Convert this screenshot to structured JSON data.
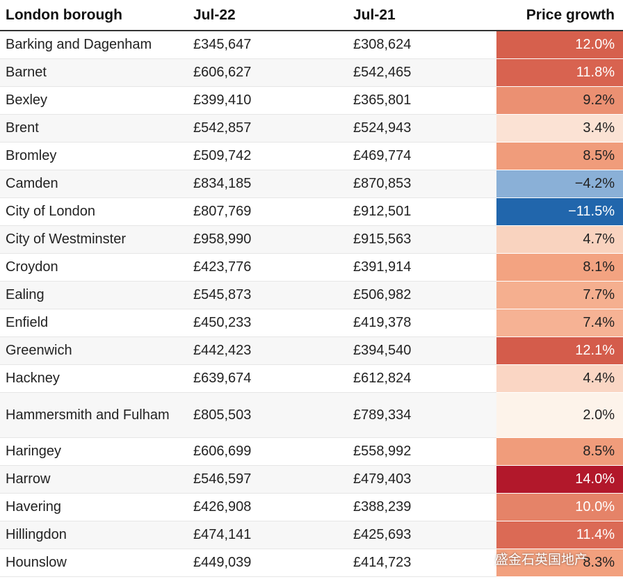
{
  "chart_data": {
    "type": "table",
    "columns": [
      "London borough",
      "Jul-22",
      "Jul-21",
      "Price growth"
    ],
    "rows": [
      {
        "borough": "Barking and Dagenham",
        "jul22": "£345,647",
        "jul21": "£308,624",
        "growth": "12.0%",
        "value": 12.0
      },
      {
        "borough": "Barnet",
        "jul22": "£606,627",
        "jul21": "£542,465",
        "growth": "11.8%",
        "value": 11.8
      },
      {
        "borough": "Bexley",
        "jul22": "£399,410",
        "jul21": "£365,801",
        "growth": "9.2%",
        "value": 9.2
      },
      {
        "borough": "Brent",
        "jul22": "£542,857",
        "jul21": "£524,943",
        "growth": "3.4%",
        "value": 3.4
      },
      {
        "borough": "Bromley",
        "jul22": "£509,742",
        "jul21": "£469,774",
        "growth": "8.5%",
        "value": 8.5
      },
      {
        "borough": "Camden",
        "jul22": "£834,185",
        "jul21": "£870,853",
        "growth": "−4.2%",
        "value": -4.2
      },
      {
        "borough": "City of London",
        "jul22": "£807,769",
        "jul21": "£912,501",
        "growth": "−11.5%",
        "value": -11.5
      },
      {
        "borough": "City of Westminster",
        "jul22": "£958,990",
        "jul21": "£915,563",
        "growth": "4.7%",
        "value": 4.7
      },
      {
        "borough": "Croydon",
        "jul22": "£423,776",
        "jul21": "£391,914",
        "growth": "8.1%",
        "value": 8.1
      },
      {
        "borough": "Ealing",
        "jul22": "£545,873",
        "jul21": "£506,982",
        "growth": "7.7%",
        "value": 7.7
      },
      {
        "borough": "Enfield",
        "jul22": "£450,233",
        "jul21": "£419,378",
        "growth": "7.4%",
        "value": 7.4
      },
      {
        "borough": "Greenwich",
        "jul22": "£442,423",
        "jul21": "£394,540",
        "growth": "12.1%",
        "value": 12.1
      },
      {
        "borough": "Hackney",
        "jul22": "£639,674",
        "jul21": "£612,824",
        "growth": "4.4%",
        "value": 4.4
      },
      {
        "borough": "Hammersmith and Fulham",
        "jul22": "£805,503",
        "jul21": "£789,334",
        "growth": "2.0%",
        "value": 2.0
      },
      {
        "borough": "Haringey",
        "jul22": "£606,699",
        "jul21": "£558,992",
        "growth": "8.5%",
        "value": 8.5
      },
      {
        "borough": "Harrow",
        "jul22": "£546,597",
        "jul21": "£479,403",
        "growth": "14.0%",
        "value": 14.0
      },
      {
        "borough": "Havering",
        "jul22": "£426,908",
        "jul21": "£388,239",
        "growth": "10.0%",
        "value": 10.0
      },
      {
        "borough": "Hillingdon",
        "jul22": "£474,141",
        "jul21": "£425,693",
        "growth": "11.4%",
        "value": 11.4
      },
      {
        "borough": "Hounslow",
        "jul22": "£449,039",
        "jul21": "£414,723",
        "growth": "8.3%",
        "value": 8.3
      }
    ],
    "color_scale": {
      "negative": [
        "#c6dbef",
        "#2166ac"
      ],
      "positive": [
        "#fdf3ea",
        "#f4a582",
        "#d6604d",
        "#b2182b"
      ]
    }
  },
  "watermark": {
    "text": "盛金石英国地产",
    "icon": "wechat-icon"
  }
}
